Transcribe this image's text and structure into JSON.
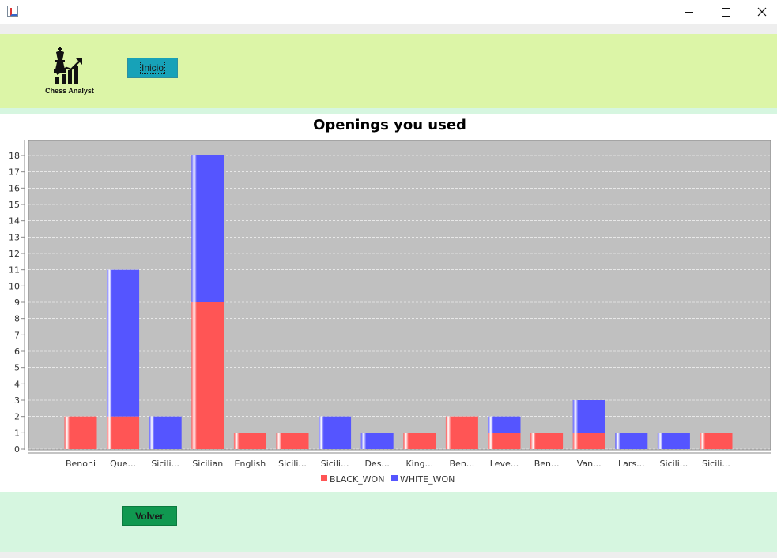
{
  "window": {
    "icon": "java-cup-icon",
    "controls": {
      "minimize": "minimize-icon",
      "maximize": "maximize-icon",
      "close": "close-icon"
    }
  },
  "header": {
    "logo_text": "Chess Analyst",
    "logo_icon": "chess-king-growth-chart-icon",
    "inicio_label": "Inicio"
  },
  "footer": {
    "volver_label": "Volver"
  },
  "colors": {
    "header_bg": "#dcf5a7",
    "footer_bg": "#d6f6e0",
    "plot_bg": "#c0c0c0",
    "black_won": "#ff5555",
    "white_won": "#5555ff",
    "inicio_bg": "#17a2b8",
    "volver_bg": "#109850"
  },
  "chart_data": {
    "type": "bar",
    "stacked": true,
    "title": "Openings you used",
    "xlabel": "",
    "ylabel": "",
    "ylim": [
      0,
      18
    ],
    "yticks": [
      0,
      1,
      2,
      3,
      4,
      5,
      6,
      7,
      8,
      9,
      10,
      11,
      12,
      13,
      14,
      15,
      16,
      17,
      18
    ],
    "grid": true,
    "legend_position": "bottom",
    "categories": [
      "Benoni",
      "Que...",
      "Sicili...",
      "Sicilian",
      "English",
      "Sicili...",
      "Sicili...",
      "Des...",
      "King...",
      "Ben...",
      "Leve...",
      "Ben...",
      "Van...",
      "Lars...",
      "Sicili...",
      "Sicili..."
    ],
    "series": [
      {
        "name": "BLACK_WON",
        "color": "#ff5555",
        "values": [
          2,
          2,
          0,
          9,
          1,
          1,
          0,
          0,
          1,
          2,
          1,
          1,
          1,
          0,
          0,
          1
        ]
      },
      {
        "name": "WHITE_WON",
        "color": "#5555ff",
        "values": [
          0,
          9,
          2,
          9,
          0,
          0,
          2,
          1,
          0,
          0,
          1,
          0,
          2,
          1,
          1,
          0
        ]
      }
    ]
  }
}
